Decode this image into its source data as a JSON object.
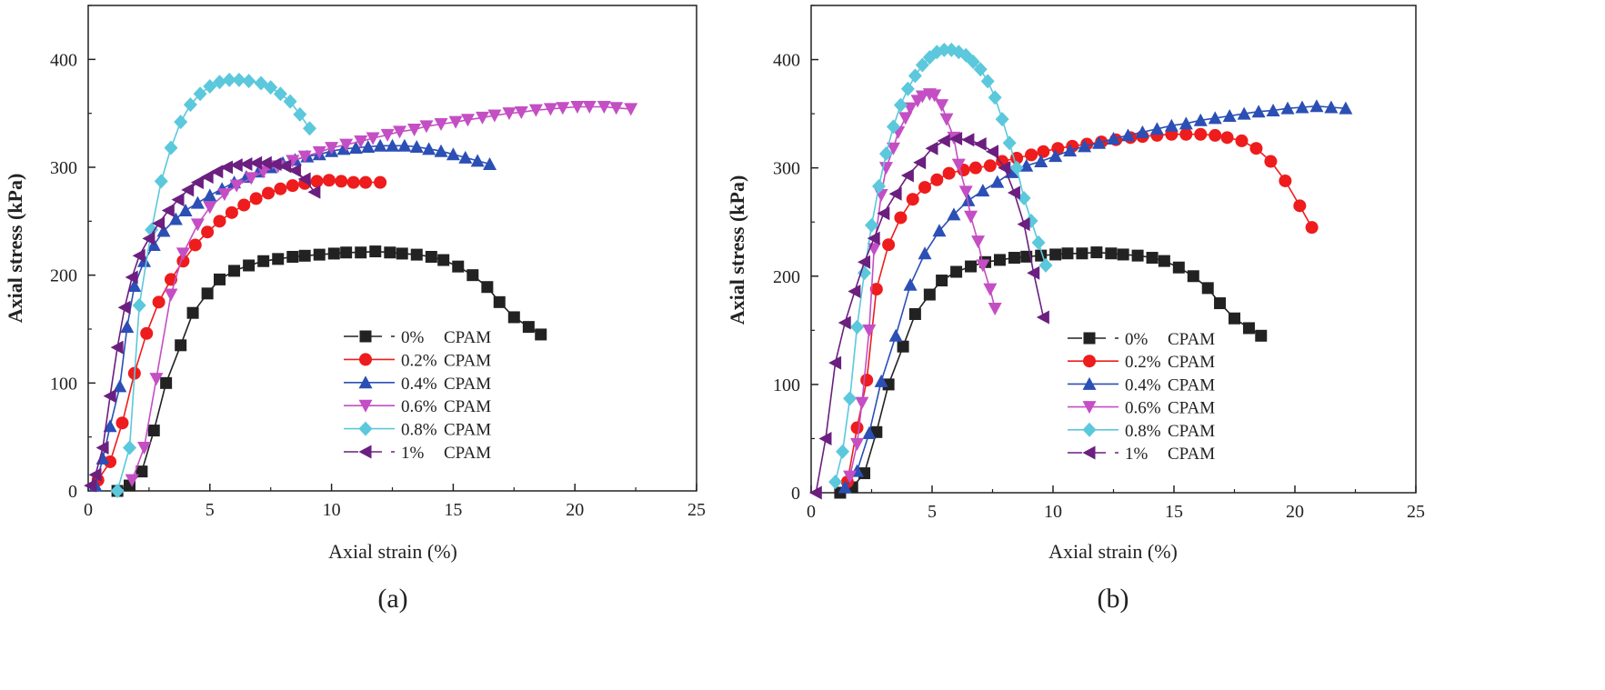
{
  "chart_data": [
    {
      "panel_label": "(a)",
      "type": "line",
      "xlabel": "Axial strain (%)",
      "ylabel": "Axial stress (kPa)",
      "xlim": [
        0,
        25
      ],
      "ylim": [
        0,
        450
      ],
      "xticks": [
        0,
        5,
        10,
        15,
        20,
        25
      ],
      "yticks": [
        0,
        100,
        200,
        300,
        400
      ],
      "legend_position": "bottom-right",
      "series": [
        {
          "name": "0% CPAM",
          "color": "#222222",
          "marker": "square",
          "x": [
            1.2,
            1.7,
            2.2,
            2.7,
            3.2,
            3.8,
            4.3,
            4.9,
            5.4,
            6.0,
            6.6,
            7.2,
            7.8,
            8.4,
            8.9,
            9.5,
            10.1,
            10.6,
            11.2,
            11.8,
            12.4,
            12.9,
            13.5,
            14.1,
            14.6,
            15.2,
            15.8,
            16.4,
            16.9,
            17.5,
            18.1,
            18.6
          ],
          "y": [
            0,
            5,
            18,
            56,
            100,
            135,
            165,
            183,
            196,
            204,
            209,
            213,
            215,
            217,
            218,
            219,
            220,
            221,
            221,
            222,
            221,
            220,
            219,
            217,
            214,
            208,
            200,
            189,
            175,
            161,
            152,
            145
          ]
        },
        {
          "name": "0.2% CPAM",
          "color": "#ee1c1c",
          "marker": "circle",
          "x": [
            0.4,
            0.9,
            1.4,
            1.9,
            2.4,
            2.9,
            3.4,
            3.9,
            4.4,
            4.9,
            5.4,
            5.9,
            6.4,
            6.9,
            7.4,
            7.9,
            8.4,
            8.9,
            9.4,
            9.9,
            10.4,
            10.9,
            11.4,
            12.0
          ],
          "y": [
            10,
            27,
            63,
            109,
            146,
            175,
            196,
            213,
            228,
            240,
            250,
            258,
            265,
            271,
            276,
            280,
            283,
            285,
            287,
            288,
            287,
            286,
            286,
            286
          ]
        },
        {
          "name": "0.4% CPAM",
          "color": "#2b4fb5",
          "marker": "triangle-up",
          "x": [
            0.3,
            0.6,
            0.9,
            1.3,
            1.6,
            1.9,
            2.3,
            2.7,
            3.1,
            3.6,
            4.0,
            4.5,
            5.0,
            5.5,
            6.0,
            6.5,
            7.0,
            7.5,
            8.0,
            8.5,
            9.0,
            9.5,
            10.0,
            10.5,
            11.0,
            11.5,
            12.0,
            12.5,
            13.0,
            13.5,
            14.0,
            14.5,
            15.0,
            15.5,
            16.0,
            16.5
          ],
          "y": [
            5,
            30,
            60,
            97,
            152,
            190,
            213,
            228,
            241,
            252,
            260,
            267,
            274,
            280,
            286,
            291,
            296,
            300,
            304,
            307,
            310,
            312,
            315,
            317,
            318,
            319,
            320,
            320,
            320,
            319,
            317,
            315,
            312,
            309,
            306,
            303
          ]
        },
        {
          "name": "0.6% CPAM",
          "color": "#c44ec4",
          "marker": "triangle-down",
          "x": [
            1.8,
            2.3,
            2.8,
            3.4,
            3.9,
            4.5,
            5.0,
            5.6,
            6.1,
            6.7,
            7.2,
            7.8,
            8.4,
            8.9,
            9.5,
            10.0,
            10.6,
            11.2,
            11.7,
            12.3,
            12.8,
            13.4,
            13.9,
            14.5,
            15.1,
            15.6,
            16.2,
            16.7,
            17.3,
            17.8,
            18.4,
            19.0,
            19.5,
            20.1,
            20.6,
            21.2,
            21.7,
            22.3
          ],
          "y": [
            10,
            40,
            104,
            182,
            220,
            247,
            263,
            275,
            283,
            290,
            296,
            301,
            306,
            310,
            314,
            318,
            321,
            324,
            327,
            330,
            333,
            335,
            338,
            340,
            342,
            344,
            346,
            348,
            350,
            351,
            353,
            354,
            355,
            356,
            356,
            356,
            355,
            354
          ]
        },
        {
          "name": "0.8% CPAM",
          "color": "#5bc8dc",
          "marker": "diamond",
          "x": [
            1.2,
            1.7,
            2.1,
            2.6,
            3.0,
            3.4,
            3.8,
            4.2,
            4.6,
            5.0,
            5.4,
            5.8,
            6.2,
            6.6,
            7.1,
            7.5,
            7.9,
            8.3,
            8.7,
            9.1
          ],
          "y": [
            0,
            40,
            172,
            242,
            287,
            318,
            342,
            358,
            368,
            375,
            379,
            381,
            381,
            380,
            378,
            374,
            368,
            361,
            349,
            336
          ]
        },
        {
          "name": "1% CPAM",
          "color": "#6b1f7f",
          "marker": "triangle-left",
          "x": [
            0.1,
            0.3,
            0.6,
            0.9,
            1.2,
            1.5,
            1.8,
            2.1,
            2.5,
            2.9,
            3.3,
            3.7,
            4.1,
            4.5,
            4.9,
            5.3,
            5.7,
            6.1,
            6.5,
            6.9,
            7.3,
            7.7,
            8.1,
            8.5,
            8.9,
            9.3
          ],
          "y": [
            5,
            15,
            40,
            88,
            133,
            170,
            198,
            218,
            234,
            248,
            260,
            270,
            279,
            286,
            291,
            296,
            300,
            302,
            303,
            304,
            304,
            303,
            301,
            297,
            289,
            277
          ]
        }
      ],
      "legend_entries": [
        {
          "marker": "0%",
          "label": "CPAM"
        },
        {
          "marker": "0.2%",
          "label": "CPAM"
        },
        {
          "marker": "0.4%",
          "label": "CPAM"
        },
        {
          "marker": "0.6%",
          "label": "CPAM"
        },
        {
          "marker": "0.8%",
          "label": "CPAM"
        },
        {
          "marker": "1%",
          "label": "CPAM"
        }
      ]
    },
    {
      "panel_label": "(b)",
      "type": "line",
      "xlabel": "Axial strain (%)",
      "ylabel": "Axial stress (kPa)",
      "xlim": [
        0,
        25
      ],
      "ylim": [
        0,
        450
      ],
      "xticks": [
        0,
        5,
        10,
        15,
        20,
        25
      ],
      "yticks": [
        0,
        100,
        200,
        300,
        400
      ],
      "legend_position": "bottom-right",
      "series": [
        {
          "name": "0% CPAM",
          "color": "#222222",
          "marker": "square",
          "x": [
            1.2,
            1.7,
            2.2,
            2.7,
            3.2,
            3.8,
            4.3,
            4.9,
            5.4,
            6.0,
            6.6,
            7.2,
            7.8,
            8.4,
            8.9,
            9.5,
            10.1,
            10.6,
            11.2,
            11.8,
            12.4,
            12.9,
            13.5,
            14.1,
            14.6,
            15.2,
            15.8,
            16.4,
            16.9,
            17.5,
            18.1,
            18.6
          ],
          "y": [
            0,
            5,
            18,
            56,
            100,
            135,
            165,
            183,
            196,
            204,
            209,
            213,
            215,
            217,
            218,
            219,
            220,
            221,
            221,
            222,
            221,
            220,
            219,
            217,
            214,
            208,
            200,
            189,
            175,
            161,
            152,
            145
          ]
        },
        {
          "name": "0.2% CPAM",
          "color": "#ee1c1c",
          "marker": "circle",
          "x": [
            1.5,
            1.9,
            2.3,
            2.7,
            3.2,
            3.7,
            4.2,
            4.7,
            5.2,
            5.7,
            6.3,
            6.8,
            7.4,
            7.9,
            8.5,
            9.1,
            9.6,
            10.2,
            10.8,
            11.4,
            12.0,
            12.6,
            13.2,
            13.7,
            14.3,
            14.9,
            15.5,
            16.1,
            16.7,
            17.2,
            17.8,
            18.4,
            19.0,
            19.6,
            20.2,
            20.7
          ],
          "y": [
            10,
            60,
            104,
            188,
            229,
            254,
            271,
            282,
            289,
            295,
            298,
            300,
            302,
            306,
            309,
            312,
            315,
            318,
            320,
            322,
            324,
            326,
            328,
            329,
            330,
            331,
            331,
            331,
            330,
            328,
            325,
            318,
            306,
            288,
            265,
            245
          ]
        },
        {
          "name": "0.4% CPAM",
          "color": "#2b4fb5",
          "marker": "triangle-up",
          "x": [
            1.4,
            1.9,
            2.4,
            2.9,
            3.5,
            4.1,
            4.7,
            5.3,
            5.9,
            6.5,
            7.1,
            7.7,
            8.3,
            8.9,
            9.5,
            10.1,
            10.7,
            11.3,
            11.9,
            12.5,
            13.1,
            13.7,
            14.3,
            14.9,
            15.5,
            16.1,
            16.7,
            17.3,
            17.9,
            18.5,
            19.1,
            19.7,
            20.3,
            20.9,
            21.5,
            22.1
          ],
          "y": [
            5,
            20,
            55,
            103,
            145,
            192,
            221,
            242,
            257,
            270,
            279,
            287,
            296,
            302,
            306,
            311,
            316,
            320,
            323,
            327,
            330,
            333,
            336,
            339,
            341,
            344,
            346,
            348,
            350,
            352,
            353,
            355,
            356,
            357,
            356,
            355
          ]
        },
        {
          "name": "0.6% CPAM",
          "color": "#c44ec4",
          "marker": "triangle-down",
          "x": [
            1.6,
            1.9,
            2.1,
            2.4,
            2.6,
            2.9,
            3.1,
            3.4,
            3.6,
            3.9,
            4.1,
            4.4,
            4.6,
            4.9,
            5.1,
            5.4,
            5.6,
            5.9,
            6.1,
            6.4,
            6.6,
            6.9,
            7.1,
            7.4,
            7.6
          ],
          "y": [
            15,
            45,
            83,
            150,
            225,
            275,
            300,
            318,
            333,
            346,
            355,
            362,
            366,
            368,
            367,
            358,
            345,
            328,
            303,
            278,
            255,
            232,
            210,
            188,
            170
          ]
        },
        {
          "name": "0.8% CPAM",
          "color": "#5bc8dc",
          "marker": "diamond",
          "x": [
            1.0,
            1.3,
            1.6,
            1.9,
            2.2,
            2.5,
            2.8,
            3.1,
            3.4,
            3.7,
            4.0,
            4.3,
            4.6,
            4.9,
            5.2,
            5.5,
            5.8,
            6.1,
            6.4,
            6.7,
            7.0,
            7.3,
            7.6,
            7.9,
            8.2,
            8.5,
            8.8,
            9.1,
            9.4,
            9.7
          ],
          "y": [
            10,
            38,
            87,
            153,
            203,
            247,
            283,
            313,
            338,
            358,
            373,
            385,
            395,
            402,
            407,
            409,
            409,
            407,
            404,
            398,
            391,
            380,
            365,
            345,
            323,
            300,
            272,
            251,
            231,
            210
          ]
        },
        {
          "name": "1% CPAM",
          "color": "#6b1f7f",
          "marker": "triangle-left",
          "x": [
            0.2,
            0.6,
            1.0,
            1.4,
            1.8,
            2.2,
            2.6,
            3.0,
            3.5,
            4.0,
            4.5,
            5.0,
            5.5,
            6.0,
            6.5,
            7.0,
            7.5,
            8.0,
            8.4,
            8.8,
            9.2,
            9.6
          ],
          "y": [
            0,
            50,
            120,
            157,
            186,
            213,
            235,
            258,
            276,
            293,
            305,
            318,
            325,
            327,
            326,
            322,
            315,
            300,
            277,
            248,
            203,
            162
          ]
        }
      ],
      "legend_entries": [
        {
          "marker": "0%",
          "label": "CPAM"
        },
        {
          "marker": "0.2%",
          "label": "CPAM"
        },
        {
          "marker": "0.4%",
          "label": "CPAM"
        },
        {
          "marker": "0.6%",
          "label": "CPAM"
        },
        {
          "marker": "0.8%",
          "label": "CPAM"
        },
        {
          "marker": "1%",
          "label": "CPAM"
        }
      ]
    }
  ]
}
